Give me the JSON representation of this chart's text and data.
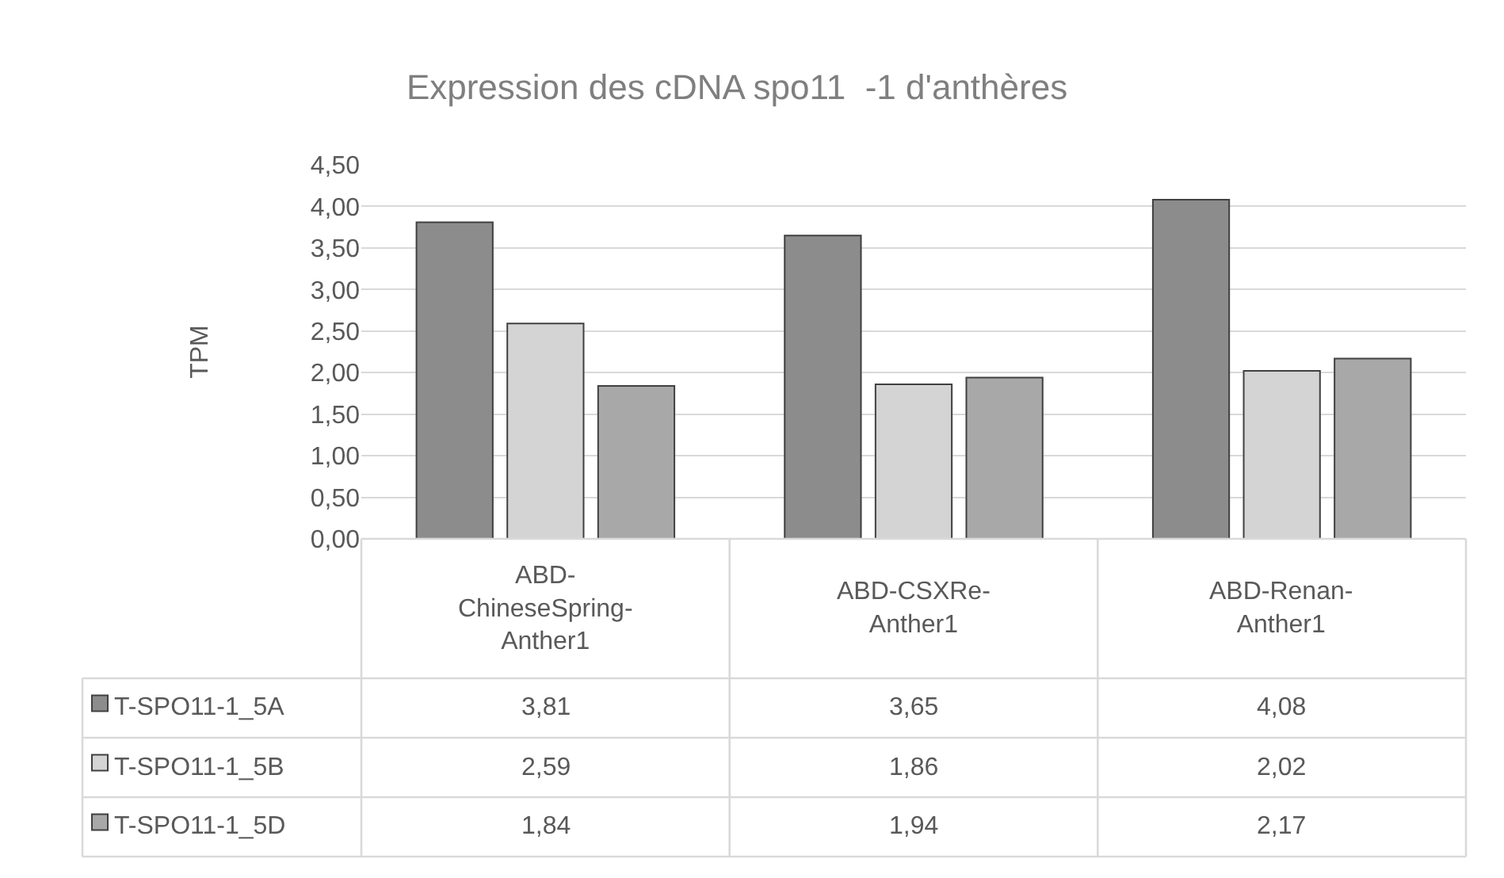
{
  "chart_data": {
    "type": "bar",
    "title": "Expression des cDNA spo11  -1 d'anthères",
    "ylabel": "TPM",
    "categories": [
      "ABD-ChineseSpring-Anther1",
      "ABD-CSXRe-Anther1",
      "ABD-Renan-Anther1"
    ],
    "series": [
      {
        "name": "T-SPO11-1_5A",
        "color": "#8c8c8c",
        "values": [
          3.81,
          3.65,
          4.08
        ],
        "value_labels": [
          "3,81",
          "3,65",
          "4,08"
        ]
      },
      {
        "name": "T-SPO11-1_5B",
        "color": "#d4d4d4",
        "values": [
          2.59,
          1.86,
          2.02
        ],
        "value_labels": [
          "2,59",
          "1,86",
          "2,02"
        ]
      },
      {
        "name": "T-SPO11-1_5D",
        "color": "#a8a8a8",
        "values": [
          1.84,
          1.94,
          2.17
        ],
        "value_labels": [
          "1,84",
          "1,94",
          "2,17"
        ]
      }
    ],
    "ylim": [
      0,
      4.5
    ],
    "yticks": [
      {
        "value": 0,
        "label": "0,00"
      },
      {
        "value": 0.5,
        "label": "0,50"
      },
      {
        "value": 1,
        "label": "1,00"
      },
      {
        "value": 1.5,
        "label": "1,50"
      },
      {
        "value": 2,
        "label": "2,00"
      },
      {
        "value": 2.5,
        "label": "2,50"
      },
      {
        "value": 3,
        "label": "3,00"
      },
      {
        "value": 3.5,
        "label": "3,50"
      },
      {
        "value": 4,
        "label": "4,00"
      },
      {
        "value": 4.5,
        "label": "4,50"
      }
    ],
    "grid": "y",
    "legend": "bottom left"
  }
}
